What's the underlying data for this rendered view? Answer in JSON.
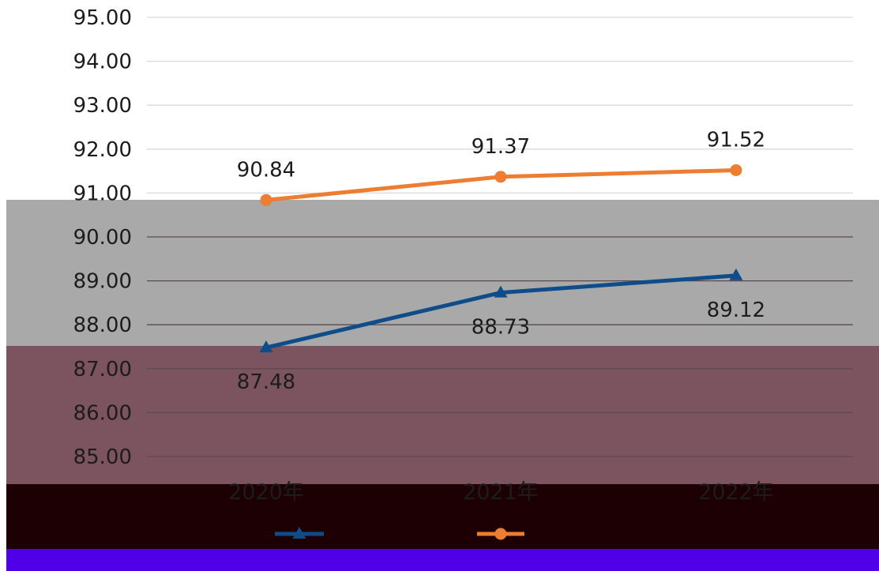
{
  "chart_data": {
    "type": "line",
    "categories": [
      "2020年",
      "2021年",
      "2022年"
    ],
    "series": [
      {
        "name": "",
        "marker": "circle",
        "color": "#ED7D31",
        "values": [
          90.84,
          91.37,
          91.52
        ]
      },
      {
        "name": "",
        "marker": "triangle",
        "color": "#0F4C8A",
        "values": [
          87.48,
          88.73,
          89.12
        ]
      }
    ],
    "ylim": [
      85,
      95
    ],
    "ytick_values": [
      85,
      86,
      87,
      88,
      89,
      90,
      91,
      92,
      93,
      94,
      95
    ],
    "yticks": [
      "85.00",
      "86.00",
      "87.00",
      "88.00",
      "89.00",
      "90.00",
      "91.00",
      "92.00",
      "93.00",
      "94.00",
      "95.00"
    ],
    "grid": true,
    "legend_position": "bottom",
    "title": "",
    "xlabel": "",
    "ylabel": ""
  },
  "overlay_colors": {
    "gray_band": "#a9a9a9",
    "mauve_band": "#7b5460",
    "dark_band": "#1c0004",
    "blue_band": "#5000e6"
  }
}
